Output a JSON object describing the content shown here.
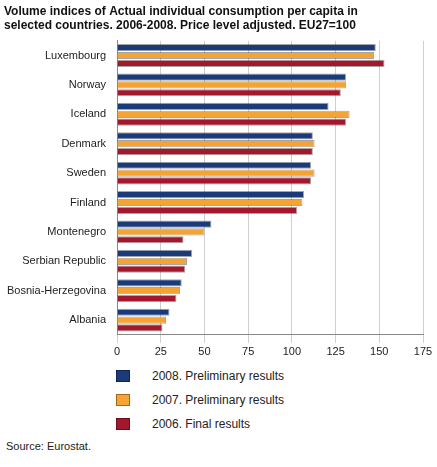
{
  "chart_data": {
    "type": "bar",
    "orientation": "horizontal",
    "title": [
      "Volume indices of Actual individual consumption per capita in",
      "selected countries. 2006-2008. Price level adjusted. EU27=100"
    ],
    "categories": [
      "Luxembourg",
      "Norway",
      "Iceland",
      "Denmark",
      "Sweden",
      "Finland",
      "Montenegro",
      "Serbian Republic",
      "Bosnia-Herzegovina",
      "Albania"
    ],
    "series": [
      {
        "name": "2008. Preliminary results",
        "color": "#1b3a7a",
        "values": [
          148,
          131,
          121,
          112,
          111,
          107,
          54,
          43,
          37,
          30
        ]
      },
      {
        "name": "2007. Preliminary results",
        "color": "#f5a332",
        "values": [
          147,
          131,
          133,
          113,
          113,
          106,
          50,
          40,
          36,
          28
        ]
      },
      {
        "name": "2006. Final results",
        "color": "#a3182c",
        "values": [
          153,
          128,
          131,
          112,
          111,
          103,
          38,
          39,
          34,
          26
        ]
      }
    ],
    "xlim": [
      0,
      175
    ],
    "xticks": [
      0,
      25,
      50,
      75,
      100,
      125,
      150,
      175
    ],
    "grid": true,
    "legend": "bottom",
    "annotations": [
      "Source: Eurostat."
    ]
  }
}
